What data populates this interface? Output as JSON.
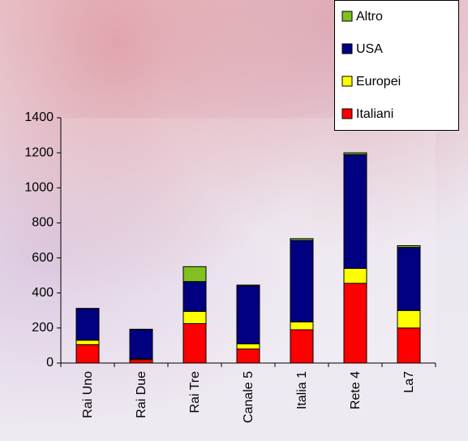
{
  "chart_data": {
    "type": "stacked-bar",
    "categories": [
      "Rai Uno",
      "Rai Due",
      "Rai Tre",
      "Canale 5",
      "Italia 1",
      "Rete 4",
      "La7"
    ],
    "series": [
      {
        "name": "Italiani",
        "color": "#ff0000",
        "values": [
          105,
          20,
          225,
          80,
          190,
          455,
          200
        ]
      },
      {
        "name": "Europei",
        "color": "#ffff00",
        "values": [
          25,
          5,
          70,
          30,
          45,
          85,
          100
        ]
      },
      {
        "name": "USA",
        "color": "#000080",
        "values": [
          180,
          165,
          170,
          330,
          465,
          650,
          360
        ]
      },
      {
        "name": "Altro",
        "color": "#80c020",
        "values": [
          2,
          3,
          85,
          5,
          10,
          10,
          10
        ]
      }
    ],
    "ylim": [
      0,
      1400
    ],
    "yticks": [
      0,
      200,
      400,
      600,
      800,
      1000,
      1200,
      1400
    ],
    "legend": "top-right"
  }
}
